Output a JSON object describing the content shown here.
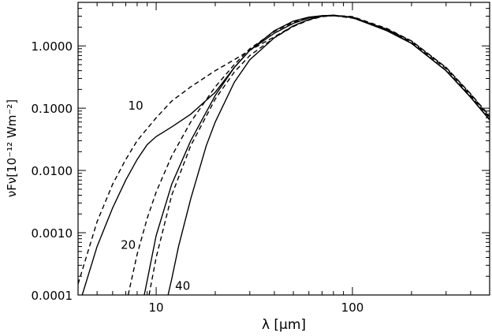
{
  "chart_data": {
    "type": "line",
    "xscale": "log",
    "yscale": "log",
    "xlim": [
      4,
      500
    ],
    "ylim": [
      0.0001,
      5
    ],
    "xlabel": "λ [μm]",
    "ylabel": "νFν[10⁻¹² Wm⁻²]",
    "x_ticks": [
      {
        "value": 10,
        "label": "10"
      },
      {
        "value": 100,
        "label": "100"
      }
    ],
    "y_ticks": [
      {
        "value": 0.0001,
        "label": "0.0001"
      },
      {
        "value": 0.001,
        "label": "0.0010"
      },
      {
        "value": 0.01,
        "label": "0.0100"
      },
      {
        "value": 0.1,
        "label": "0.1000"
      },
      {
        "value": 1,
        "label": "1.0000"
      }
    ],
    "annotations": [
      {
        "text": "10",
        "x": 7.2,
        "y": 0.095
      },
      {
        "text": "20",
        "x": 6.6,
        "y": 0.00055
      },
      {
        "text": "40",
        "x": 12.5,
        "y": 0.00012
      }
    ],
    "series": [
      {
        "style": "dashed",
        "x": [
          4,
          5,
          6,
          7,
          8,
          10,
          12,
          15,
          20,
          25,
          30,
          40,
          50,
          60,
          70,
          80,
          100,
          150,
          200,
          300,
          400,
          500
        ],
        "y": [
          0.00015,
          0.0015,
          0.006,
          0.015,
          0.03,
          0.07,
          0.13,
          0.22,
          0.4,
          0.6,
          0.85,
          1.4,
          2.1,
          2.65,
          3.0,
          3.05,
          2.8,
          1.85,
          1.2,
          0.45,
          0.17,
          0.075
        ]
      },
      {
        "style": "solid",
        "x": [
          4.2,
          5,
          6,
          7,
          8,
          9,
          10,
          12,
          15,
          20,
          25,
          30,
          40,
          50,
          60,
          70,
          80,
          100,
          150,
          200,
          300,
          400,
          500
        ],
        "y": [
          0.0001,
          0.0006,
          0.0025,
          0.007,
          0.015,
          0.026,
          0.035,
          0.05,
          0.08,
          0.18,
          0.45,
          0.85,
          1.75,
          2.5,
          2.9,
          3.05,
          3.1,
          2.85,
          1.75,
          1.1,
          0.4,
          0.15,
          0.065
        ]
      },
      {
        "style": "dashed",
        "x": [
          7.2,
          8,
          9,
          10,
          12,
          15,
          20,
          25,
          30,
          40,
          50,
          60,
          70,
          80,
          100,
          150,
          200,
          300,
          400,
          500
        ],
        "y": [
          0.0001,
          0.00045,
          0.0017,
          0.0045,
          0.017,
          0.06,
          0.22,
          0.5,
          0.9,
          1.7,
          2.4,
          2.85,
          3.05,
          3.1,
          2.95,
          1.9,
          1.2,
          0.45,
          0.17,
          0.072
        ]
      },
      {
        "style": "solid",
        "x": [
          8.7,
          10,
          12,
          15,
          20,
          25,
          30,
          40,
          50,
          60,
          70,
          80,
          100,
          150,
          200,
          300,
          400,
          500
        ],
        "y": [
          0.0001,
          0.0009,
          0.006,
          0.03,
          0.16,
          0.45,
          0.85,
          1.6,
          2.3,
          2.8,
          3.05,
          3.1,
          2.85,
          1.75,
          1.1,
          0.4,
          0.15,
          0.065
        ]
      },
      {
        "style": "dashed",
        "x": [
          9.2,
          10,
          12,
          15,
          20,
          25,
          30,
          40,
          50,
          60,
          70,
          80,
          100,
          150,
          200,
          300,
          400,
          500
        ],
        "y": [
          0.0001,
          0.0004,
          0.004,
          0.025,
          0.14,
          0.38,
          0.7,
          1.35,
          2.05,
          2.6,
          2.95,
          3.05,
          2.9,
          1.85,
          1.15,
          0.43,
          0.16,
          0.07
        ]
      },
      {
        "style": "solid",
        "x": [
          11.5,
          12,
          13,
          15,
          18,
          20,
          25,
          30,
          40,
          50,
          60,
          70,
          80,
          100,
          150,
          200,
          300,
          400,
          500
        ],
        "y": [
          0.0001,
          0.00018,
          0.0006,
          0.0035,
          0.025,
          0.06,
          0.26,
          0.6,
          1.35,
          2.1,
          2.65,
          3.0,
          3.1,
          2.9,
          1.8,
          1.1,
          0.4,
          0.15,
          0.065
        ]
      }
    ]
  }
}
